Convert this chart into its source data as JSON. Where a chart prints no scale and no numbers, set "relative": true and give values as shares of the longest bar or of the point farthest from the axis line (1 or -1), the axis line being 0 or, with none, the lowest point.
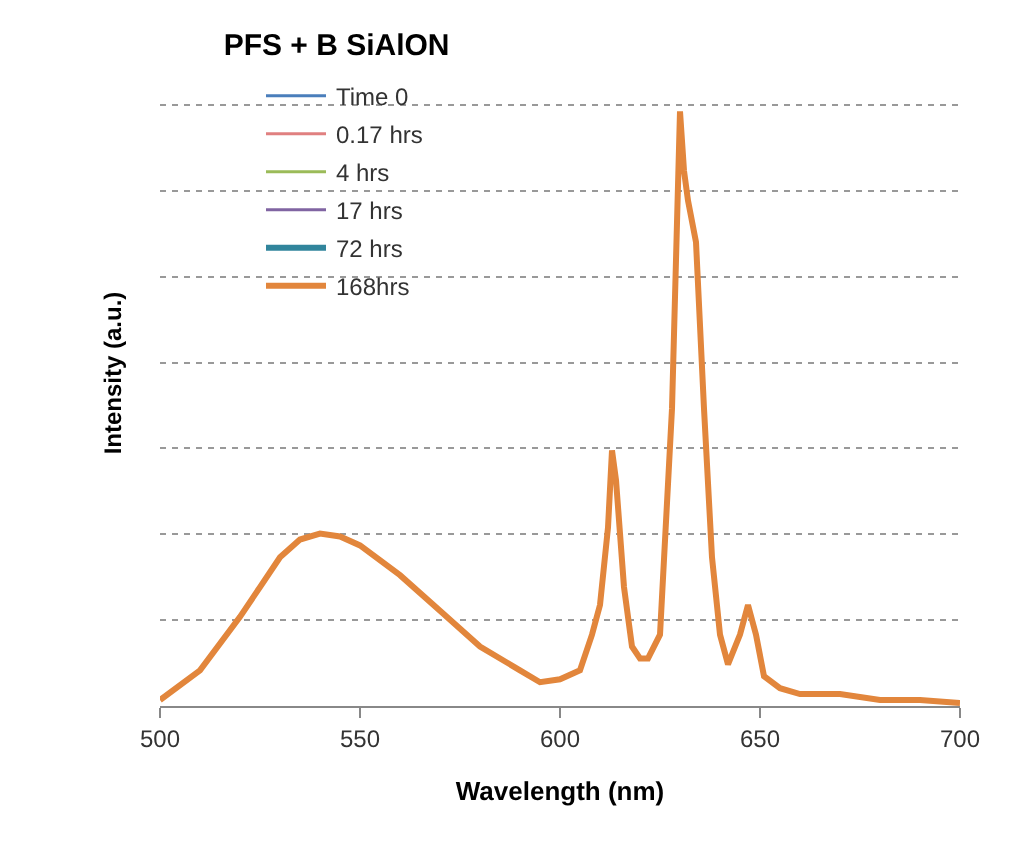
{
  "chart_data": {
    "type": "line",
    "title": "PFS + B SiAlON",
    "xlabel": "Wavelength (nm)",
    "ylabel": "Intensity (a.u.)",
    "relative": true,
    "xlim": [
      500,
      700
    ],
    "xticks": [
      500,
      550,
      600,
      650,
      700
    ],
    "grid": "y",
    "legend": "top left",
    "x": [
      500,
      510,
      520,
      525,
      530,
      535,
      540,
      545,
      550,
      560,
      570,
      580,
      590,
      595,
      600,
      605,
      608,
      610,
      612,
      613,
      614,
      616,
      618,
      620,
      622,
      625,
      628,
      629,
      630,
      631,
      632,
      634,
      636,
      638,
      640,
      642,
      645,
      647,
      649,
      651,
      655,
      660,
      670,
      680,
      690,
      700
    ],
    "series": [
      {
        "name": "Time 0",
        "color": "#4a7ebb",
        "values": [
          null,
          null,
          null,
          null,
          null,
          null,
          null,
          null,
          null,
          null,
          null,
          null,
          null,
          null,
          null,
          null,
          null,
          null,
          null,
          null,
          null,
          null,
          null,
          null,
          null,
          null,
          null,
          null,
          null,
          null,
          null,
          null,
          null,
          null,
          null,
          null,
          null,
          null,
          null,
          null,
          null,
          null,
          null,
          null,
          null,
          null
        ]
      },
      {
        "name": "0.17 hrs",
        "color": "#e08080",
        "values": [
          null,
          null,
          null,
          null,
          null,
          null,
          null,
          null,
          null,
          null,
          null,
          null,
          null,
          null,
          null,
          null,
          null,
          null,
          null,
          null,
          null,
          null,
          null,
          null,
          null,
          null,
          null,
          null,
          null,
          null,
          null,
          null,
          null,
          null,
          null,
          null,
          null,
          null,
          null,
          null,
          null,
          null,
          null,
          null,
          null,
          null
        ]
      },
      {
        "name": "4 hrs",
        "color": "#9bbb59",
        "values": [
          null,
          null,
          null,
          null,
          null,
          null,
          null,
          null,
          null,
          null,
          null,
          null,
          null,
          null,
          null,
          null,
          null,
          null,
          null,
          null,
          null,
          null,
          null,
          null,
          null,
          null,
          null,
          null,
          null,
          null,
          null,
          null,
          null,
          null,
          null,
          null,
          null,
          null,
          null,
          null,
          null,
          null,
          null,
          null,
          null,
          null
        ]
      },
      {
        "name": "17 hrs",
        "color": "#8064a2",
        "values": [
          null,
          null,
          null,
          null,
          null,
          null,
          null,
          null,
          null,
          null,
          null,
          null,
          null,
          null,
          null,
          null,
          null,
          null,
          null,
          null,
          null,
          null,
          null,
          null,
          null,
          null,
          null,
          null,
          null,
          null,
          null,
          null,
          null,
          null,
          null,
          null,
          null,
          null,
          null,
          null,
          null,
          null,
          null,
          null,
          null,
          null
        ]
      },
      {
        "name": "72 hrs",
        "color": "#31859c",
        "values": [
          null,
          null,
          null,
          null,
          null,
          null,
          null,
          null,
          null,
          null,
          null,
          null,
          null,
          null,
          null,
          null,
          null,
          null,
          null,
          null,
          null,
          null,
          null,
          null,
          null,
          null,
          null,
          null,
          null,
          null,
          null,
          null,
          null,
          null,
          null,
          null,
          null,
          null,
          null,
          null,
          null,
          null,
          null,
          null,
          null,
          null
        ]
      },
      {
        "name": "168hrs",
        "color": "#e2863c",
        "values": [
          0.01,
          0.06,
          0.15,
          0.2,
          0.25,
          0.28,
          0.29,
          0.285,
          0.27,
          0.22,
          0.16,
          0.1,
          0.06,
          0.04,
          0.045,
          0.06,
          0.12,
          0.17,
          0.3,
          0.43,
          0.38,
          0.2,
          0.1,
          0.08,
          0.08,
          0.12,
          0.5,
          0.75,
          1.0,
          0.9,
          0.85,
          0.78,
          0.5,
          0.25,
          0.12,
          0.07,
          0.12,
          0.17,
          0.12,
          0.05,
          0.03,
          0.02,
          0.02,
          0.01,
          0.01,
          0.005
        ]
      }
    ]
  }
}
